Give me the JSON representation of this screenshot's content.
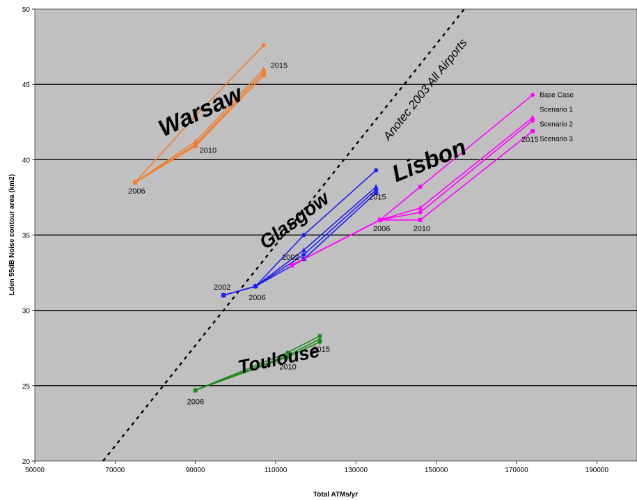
{
  "chart_data": {
    "type": "line",
    "xlabel": "Total ATMs/yr",
    "ylabel": "Lden 55dB Noise contour area (km2)",
    "xlim": [
      50000,
      200000
    ],
    "ylim": [
      20,
      50
    ],
    "x_ticks": [
      50000,
      70000,
      90000,
      110000,
      130000,
      150000,
      170000,
      190000
    ],
    "x_tick_labels": [
      "50000",
      "70000",
      "90000",
      "110000",
      "130000",
      "150000",
      "170000",
      "190000"
    ],
    "y_ticks": [
      20,
      25,
      30,
      35,
      40,
      45,
      50
    ],
    "y_tick_labels": [
      "20",
      "25",
      "30",
      "35",
      "40",
      "45",
      "50"
    ],
    "grid": "horizontal",
    "background": "#c0c0c0",
    "legend": {
      "placement": "right",
      "entries": [
        "Base Case",
        "Scenario 1",
        "Scenario 2",
        "Scenario 3"
      ]
    },
    "reference_line": {
      "label": "Anotec 2003 All Airports",
      "style": "dashed",
      "color": "#000000",
      "points": [
        {
          "x": 67000,
          "y": 20
        },
        {
          "x": 157000,
          "y": 50
        }
      ]
    },
    "airports": [
      {
        "name": "Warsaw",
        "color": "#f47b2a",
        "series": [
          {
            "x": [
              75000,
              90000,
              107000
            ],
            "y": [
              38.5,
              42.9,
              47.6
            ]
          },
          {
            "x": [
              75000,
              90000,
              107000
            ],
            "y": [
              38.5,
              41.2,
              46.0
            ]
          },
          {
            "x": [
              75000,
              90000,
              107000
            ],
            "y": [
              38.5,
              41.0,
              45.8
            ]
          },
          {
            "x": [
              75000,
              90000,
              107000
            ],
            "y": [
              38.5,
              40.9,
              45.6
            ]
          }
        ]
      },
      {
        "name": "Glasgow",
        "color": "#1f1ff0",
        "series": [
          {
            "x": [
              97000,
              105000,
              117000,
              135000
            ],
            "y": [
              31.0,
              31.6,
              35.0,
              39.3
            ]
          },
          {
            "x": [
              97000,
              105000,
              117000,
              135000
            ],
            "y": [
              31.0,
              31.6,
              34.0,
              38.2
            ]
          },
          {
            "x": [
              97000,
              105000,
              117000,
              135000
            ],
            "y": [
              31.0,
              31.6,
              33.7,
              38.0
            ]
          },
          {
            "x": [
              97000,
              105000,
              117000,
              135000
            ],
            "y": [
              31.0,
              31.6,
              33.4,
              37.8
            ]
          }
        ]
      },
      {
        "name": "Lisbon",
        "color": "#ff00ff",
        "series": [
          {
            "x": [
              114000,
              136000,
              146000,
              174000
            ],
            "y": [
              33.0,
              36.0,
              38.2,
              44.3
            ]
          },
          {
            "x": [
              114000,
              136000,
              146000,
              174000
            ],
            "y": [
              33.0,
              36.0,
              36.8,
              42.8
            ]
          },
          {
            "x": [
              114000,
              136000,
              146000,
              174000
            ],
            "y": [
              33.0,
              36.0,
              36.5,
              42.6
            ]
          },
          {
            "x": [
              114000,
              136000,
              146000,
              174000
            ],
            "y": [
              33.0,
              36.0,
              36.0,
              41.9
            ]
          }
        ]
      },
      {
        "name": "Toulouse",
        "color": "#1a8a1a",
        "series": [
          {
            "x": [
              90000,
              113000,
              121000
            ],
            "y": [
              24.7,
              27.2,
              28.3
            ]
          },
          {
            "x": [
              90000,
              113000,
              121000
            ],
            "y": [
              24.7,
              27.0,
              28.1
            ]
          },
          {
            "x": [
              90000,
              113000,
              121000
            ],
            "y": [
              24.7,
              26.9,
              27.9
            ]
          }
        ]
      }
    ],
    "year_labels": [
      {
        "text": "2006",
        "x": 75000,
        "y": 38.5
      },
      {
        "text": "2010",
        "x": 90000,
        "y": 41.0
      },
      {
        "text": "2015",
        "x": 107000,
        "y": 46.0
      },
      {
        "text": "2002",
        "x": 97000,
        "y": 31.0
      },
      {
        "text": "2006",
        "x": 105000,
        "y": 31.6
      },
      {
        "text": "2002",
        "x": 114000,
        "y": 33.0
      },
      {
        "text": "2015",
        "x": 135000,
        "y": 38.0
      },
      {
        "text": "2006",
        "x": 136000,
        "y": 36.0
      },
      {
        "text": "2010",
        "x": 146000,
        "y": 36.0
      },
      {
        "text": "2015",
        "x": 174000,
        "y": 41.9
      },
      {
        "text": "2006",
        "x": 90000,
        "y": 24.7
      },
      {
        "text": "2010",
        "x": 113000,
        "y": 26.9
      },
      {
        "text": "2015",
        "x": 121000,
        "y": 28.0
      }
    ]
  }
}
